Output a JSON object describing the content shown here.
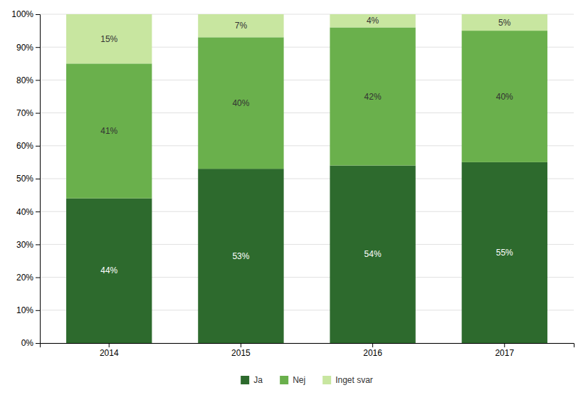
{
  "chart_data": {
    "type": "bar",
    "stacked": true,
    "categories": [
      "2014",
      "2015",
      "2016",
      "2017"
    ],
    "series": [
      {
        "name": "Ja",
        "color": "#2d6a2d",
        "values": [
          44,
          53,
          54,
          55
        ],
        "value_labels": [
          "44%",
          "53%",
          "54%",
          "55%"
        ]
      },
      {
        "name": "Nej",
        "color": "#6ab04c",
        "values": [
          41,
          40,
          42,
          40
        ],
        "value_labels": [
          "41%",
          "40%",
          "42%",
          "40%"
        ]
      },
      {
        "name": "Inget svar",
        "color": "#c8e6a0",
        "values": [
          15,
          7,
          4,
          5
        ],
        "value_labels": [
          "15%",
          "7%",
          "4%",
          "5%"
        ]
      }
    ],
    "ylim": [
      0,
      100
    ],
    "yticks": [
      {
        "value": 0,
        "label": "0%"
      },
      {
        "value": 10,
        "label": "10%"
      },
      {
        "value": 20,
        "label": "20%"
      },
      {
        "value": 30,
        "label": "30%"
      },
      {
        "value": 40,
        "label": "40%"
      },
      {
        "value": 50,
        "label": "50%"
      },
      {
        "value": 60,
        "label": "60%"
      },
      {
        "value": 70,
        "label": "70%"
      },
      {
        "value": 80,
        "label": "80%"
      },
      {
        "value": 90,
        "label": "90%"
      },
      {
        "value": 100,
        "label": "100%"
      }
    ],
    "grid": true,
    "legend": "bottom",
    "data_labels": true
  }
}
